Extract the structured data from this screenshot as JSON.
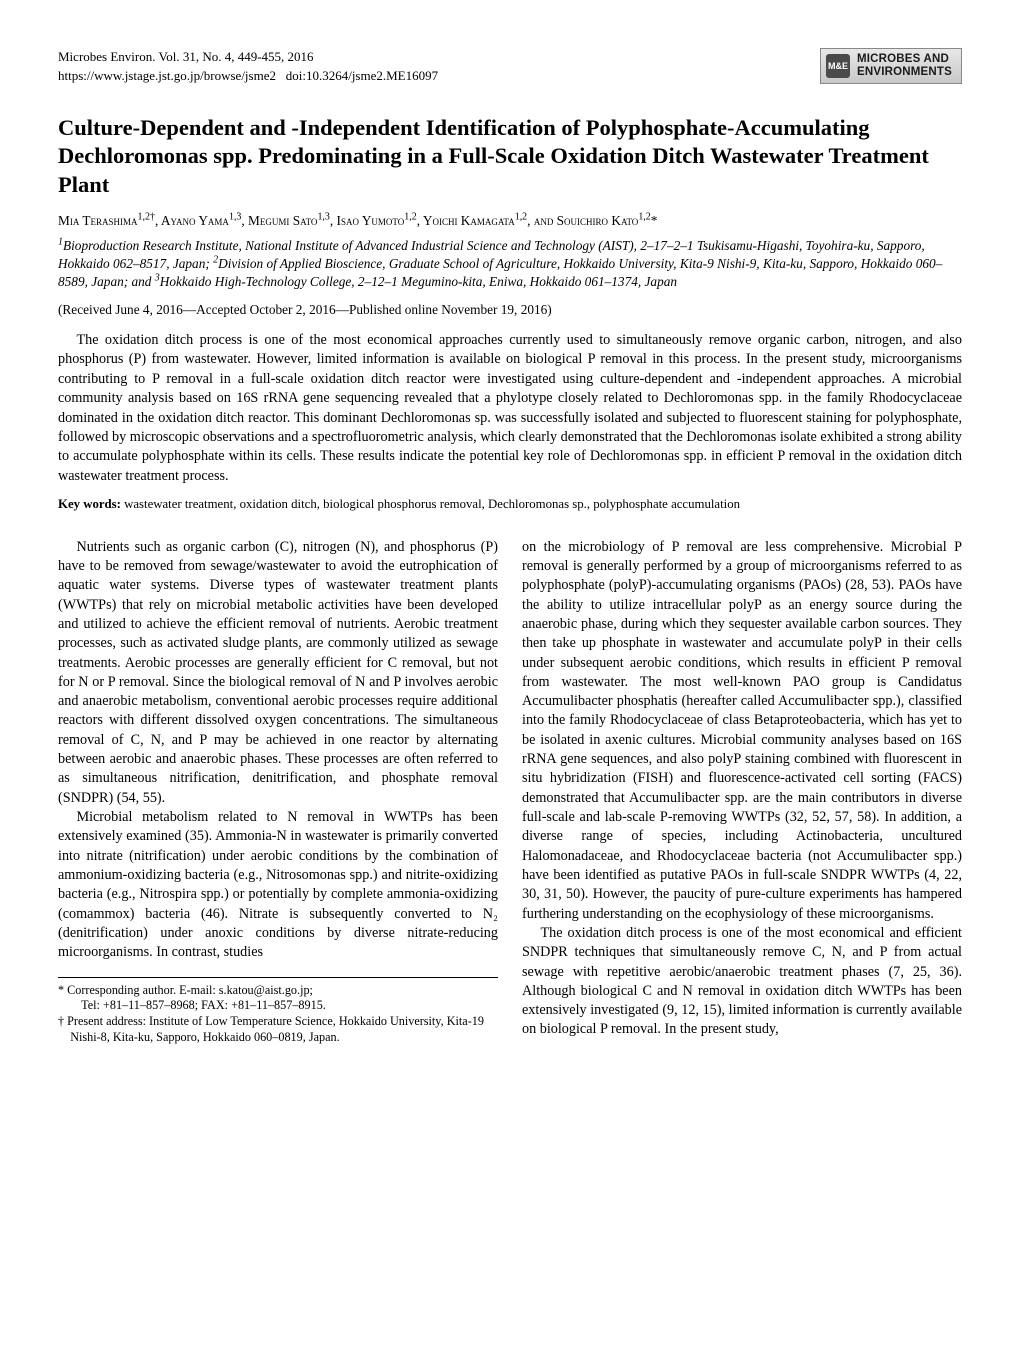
{
  "header": {
    "journal_line": "Microbes Environ. Vol. 31, No. 4, 449-455, 2016",
    "url": "https://www.jstage.jst.go.jp/browse/jsme2",
    "doi_label": "doi:10.3264/jsme2.ME16097",
    "badge_icon_text": "M&E",
    "badge_line1": "MICROBES AND",
    "badge_line2": "ENVIRONMENTS"
  },
  "title": "Culture-Dependent and -Independent Identification of Polyphosphate-Accumulating Dechloromonas spp. Predominating in a Full-Scale Oxidation Ditch Wastewater Treatment Plant",
  "authors_html": "Mia Terashima<sup>1,2†</sup>, Ayano Yama<sup>1,3</sup>, Megumi Sato<sup>1,3</sup>, Isao Yumoto<sup>1,2</sup>, Yoichi Kamagata<sup>1,2</sup>, and Souichiro Kato<sup>1,2</sup>*",
  "affiliations_html": "<sup>1</sup>Bioproduction Research Institute, National Institute of Advanced Industrial Science and Technology (AIST), 2–17–2–1 Tsukisamu-Higashi, Toyohira-ku, Sapporo, Hokkaido 062–8517, Japan; <sup>2</sup>Division of Applied Bioscience, Graduate School of Agriculture, Hokkaido University, Kita-9 Nishi-9, Kita-ku, Sapporo, Hokkaido 060–8589, Japan; and <sup>3</sup>Hokkaido High-Technology College, 2–12–1 Megumino-kita, Eniwa, Hokkaido 061–1374, Japan",
  "dates": "(Received June 4, 2016—Accepted October 2, 2016—Published online November 19, 2016)",
  "abstract": "The oxidation ditch process is one of the most economical approaches currently used to simultaneously remove organic carbon, nitrogen, and also phosphorus (P) from wastewater. However, limited information is available on biological P removal in this process. In the present study, microorganisms contributing to P removal in a full-scale oxidation ditch reactor were investigated using culture-dependent and -independent approaches. A microbial community analysis based on 16S rRNA gene sequencing revealed that a phylotype closely related to Dechloromonas spp. in the family Rhodocyclaceae dominated in the oxidation ditch reactor. This dominant Dechloromonas sp. was successfully isolated and subjected to fluorescent staining for polyphosphate, followed by microscopic observations and a spectrofluorometric analysis, which clearly demonstrated that the Dechloromonas isolate exhibited a strong ability to accumulate polyphosphate within its cells. These results indicate the potential key role of Dechloromonas spp. in efficient P removal in the oxidation ditch wastewater treatment process.",
  "keywords": {
    "label": "Key words:",
    "text": " wastewater treatment, oxidation ditch, biological phosphorus removal, Dechloromonas sp., polyphosphate accumulation"
  },
  "body": {
    "p1": "Nutrients such as organic carbon (C), nitrogen (N), and phosphorus (P) have to be removed from sewage/wastewater to avoid the eutrophication of aquatic water systems. Diverse types of wastewater treatment plants (WWTPs) that rely on microbial metabolic activities have been developed and utilized to achieve the efficient removal of nutrients. Aerobic treatment processes, such as activated sludge plants, are commonly utilized as sewage treatments. Aerobic processes are generally efficient for C removal, but not for N or P removal. Since the biological removal of N and P involves aerobic and anaerobic metabolism, conventional aerobic processes require additional reactors with different dissolved oxygen concentrations. The simultaneous removal of C, N, and P may be achieved in one reactor by alternating between aerobic and anaerobic phases. These processes are often referred to as simultaneous nitrification, denitrification, and phosphate removal (SNDPR) (54, 55).",
    "p2": "Microbial metabolism related to N removal in WWTPs has been extensively examined (35). Ammonia-N in wastewater is primarily converted into nitrate (nitrification) under aerobic conditions by the combination of ammonium-oxidizing bacteria (e.g., Nitrosomonas spp.) and nitrite-oxidizing bacteria (e.g., Nitrospira spp.) or potentially by complete ammonia-oxidizing (comammox) bacteria (46). Nitrate is subsequently converted to N₂ (denitrification) under anoxic conditions by diverse nitrate-reducing microorganisms. In contrast, studies",
    "p3": "on the microbiology of P removal are less comprehensive. Microbial P removal is generally performed by a group of microorganisms referred to as polyphosphate (polyP)-accumulating organisms (PAOs) (28, 53). PAOs have the ability to utilize intracellular polyP as an energy source during the anaerobic phase, during which they sequester available carbon sources. They then take up phosphate in wastewater and accumulate polyP in their cells under subsequent aerobic conditions, which results in efficient P removal from wastewater. The most well-known PAO group is Candidatus Accumulibacter phosphatis (hereafter called Accumulibacter spp.), classified into the family Rhodocyclaceae of class Betaproteobacteria, which has yet to be isolated in axenic cultures. Microbial community analyses based on 16S rRNA gene sequences, and also polyP staining combined with fluorescent in situ hybridization (FISH) and fluorescence-activated cell sorting (FACS) demonstrated that Accumulibacter spp. are the main contributors in diverse full-scale and lab-scale P-removing WWTPs (32, 52, 57, 58). In addition, a diverse range of species, including Actinobacteria, uncultured Halomonadaceae, and Rhodocyclaceae bacteria (not Accumulibacter spp.) have been identified as putative PAOs in full-scale SNDPR WWTPs (4, 22, 30, 31, 50). However, the paucity of pure-culture experiments has hampered furthering understanding on the ecophysiology of these microorganisms.",
    "p4": "The oxidation ditch process is one of the most economical and efficient SNDPR techniques that simultaneously remove C, N, and P from actual sewage with repetitive aerobic/anaerobic treatment phases (7, 25, 36). Although biological C and N removal in oxidation ditch WWTPs has been extensively investigated (9, 12, 15), limited information is currently available on biological P removal. In the present study,"
  },
  "footnotes": {
    "f1a": "* Corresponding author. E-mail: s.katou@aist.go.jp;",
    "f1b": "Tel: +81–11–857–8968; FAX: +81–11–857–8915.",
    "f2": "† Present address: Institute of Low Temperature Science, Hokkaido University, Kita-19 Nishi-8, Kita-ku, Sapporo, Hokkaido 060–0819, Japan."
  }
}
